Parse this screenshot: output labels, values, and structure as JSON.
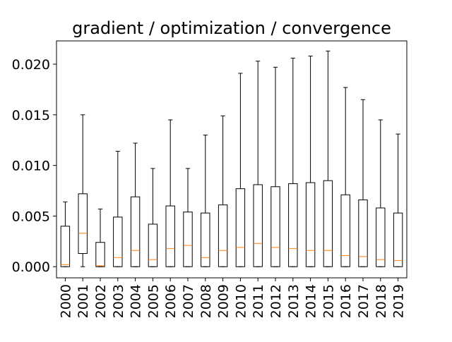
{
  "chart_data": {
    "type": "box",
    "title": "gradient / optimization / convergence",
    "xlabel": "",
    "ylabel": "",
    "categories": [
      "2000",
      "2001",
      "2002",
      "2003",
      "2004",
      "2005",
      "2006",
      "2007",
      "2008",
      "2009",
      "2010",
      "2011",
      "2012",
      "2013",
      "2014",
      "2015",
      "2016",
      "2017",
      "2018",
      "2019"
    ],
    "series": [
      {
        "whisker_low": [
          0,
          0,
          0,
          0,
          0,
          0,
          0,
          0,
          0,
          0,
          0,
          0,
          0,
          0,
          0,
          0,
          0,
          0,
          0,
          0
        ],
        "q1": [
          0,
          0.0013,
          0,
          0,
          0,
          0,
          0,
          0,
          0,
          0,
          0,
          0,
          0,
          0,
          0,
          0,
          0,
          0,
          0,
          0
        ],
        "median": [
          0.0002,
          0.0033,
          0.0001,
          0.0009,
          0.0016,
          0.0007,
          0.0018,
          0.0021,
          0.0009,
          0.0016,
          0.0019,
          0.0023,
          0.0019,
          0.0018,
          0.0016,
          0.0016,
          0.0011,
          0.001,
          0.0007,
          0.0006
        ],
        "q3": [
          0.004,
          0.0072,
          0.0024,
          0.0049,
          0.0069,
          0.0042,
          0.006,
          0.0054,
          0.0053,
          0.0061,
          0.0077,
          0.0081,
          0.0079,
          0.0082,
          0.0083,
          0.0085,
          0.0071,
          0.0066,
          0.0058,
          0.0053
        ],
        "whisker_high": [
          0.0064,
          0.015,
          0.0057,
          0.0114,
          0.0122,
          0.0097,
          0.0145,
          0.0097,
          0.013,
          0.0149,
          0.0191,
          0.0203,
          0.0197,
          0.0206,
          0.0208,
          0.0213,
          0.0177,
          0.0165,
          0.0145,
          0.0131
        ]
      }
    ],
    "ylim": [
      -0.0011,
      0.0223
    ],
    "yticks": [
      0.0,
      0.005,
      0.01,
      0.015,
      0.02
    ],
    "ytick_labels": [
      "0.000",
      "0.005",
      "0.010",
      "0.015",
      "0.020"
    ],
    "grid": false,
    "colors": {
      "box": "#000000",
      "median": "#ff7f0e",
      "background": "#ffffff"
    }
  }
}
